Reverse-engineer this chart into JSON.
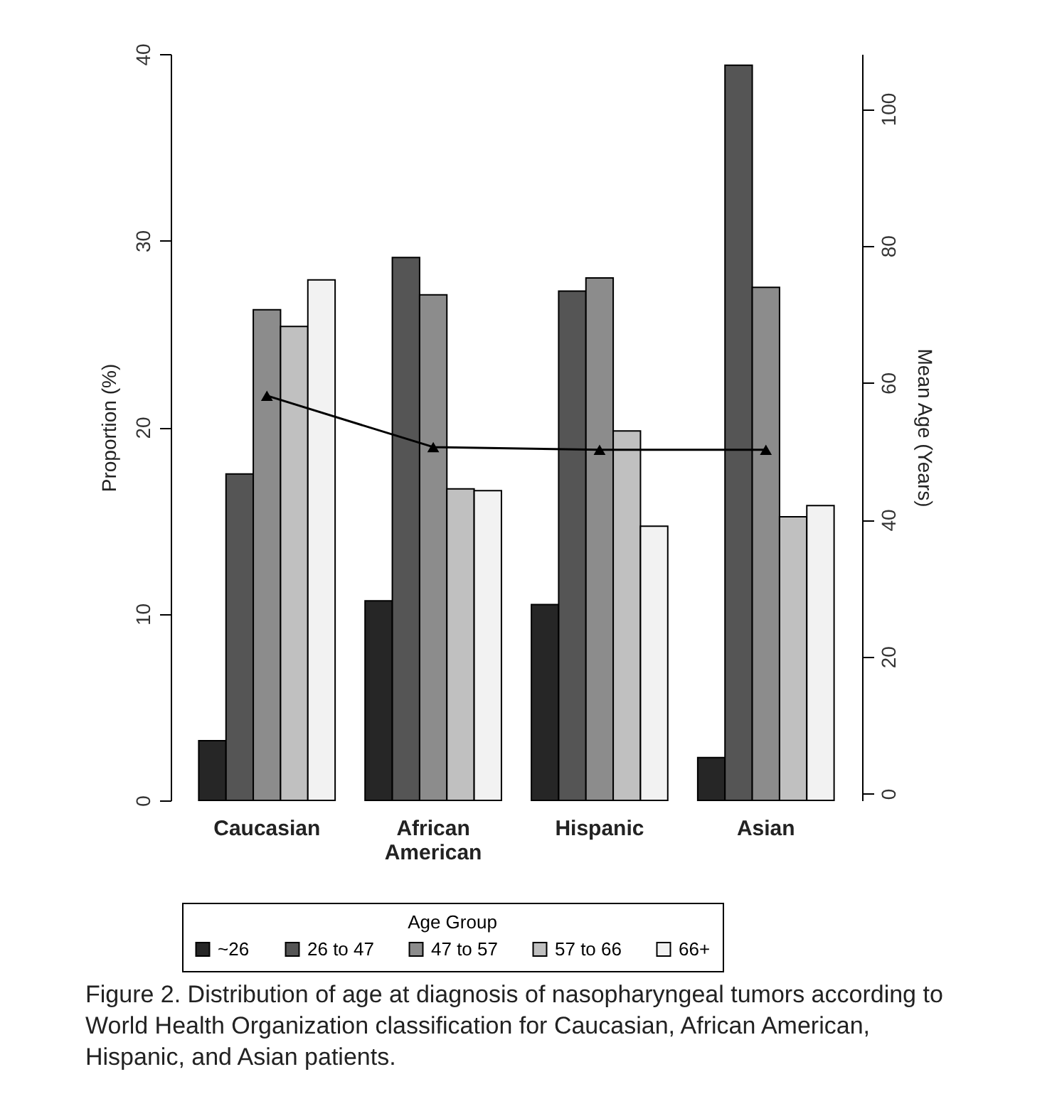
{
  "chart_data": {
    "type": "bar",
    "ylabel": "Proportion (%)",
    "y2label": "Mean Age (Years)",
    "legend_title": "Age Group",
    "legend": "bottom",
    "grid": false,
    "categories": [
      "Caucasian",
      "African American",
      "Hispanic",
      "Asian"
    ],
    "ylim": [
      0,
      40
    ],
    "yticks": [
      0,
      10,
      20,
      30,
      40
    ],
    "y2lim": [
      -1,
      108
    ],
    "y2ticks": [
      0,
      20,
      40,
      60,
      80,
      100
    ],
    "series": [
      {
        "name": "~26",
        "color": "#262626",
        "values": [
          3.2,
          10.7,
          10.5,
          2.3
        ]
      },
      {
        "name": "26 to 47",
        "color": "#555555",
        "values": [
          17.5,
          29.1,
          27.3,
          39.4
        ]
      },
      {
        "name": "47 to 57",
        "color": "#8c8c8c",
        "values": [
          26.3,
          27.1,
          28.0,
          27.5
        ]
      },
      {
        "name": "57 to 66",
        "color": "#c0c0c0",
        "values": [
          25.4,
          16.7,
          19.8,
          15.2
        ]
      },
      {
        "name": "66+",
        "color": "#f2f2f2",
        "values": [
          27.9,
          16.6,
          14.7,
          15.8
        ]
      },
      {
        "type": "line",
        "axis": "y2",
        "color": "#000000",
        "marker": "triangle",
        "values": [
          58.1,
          50.6,
          50.2,
          50.2
        ]
      }
    ],
    "annotations": [
      "Figure 2. Distribution of age at diagnosis of nasopharyngeal tumors according to World Health Organization classification for Caucasian, African American, Hispanic, and Asian patients."
    ]
  }
}
